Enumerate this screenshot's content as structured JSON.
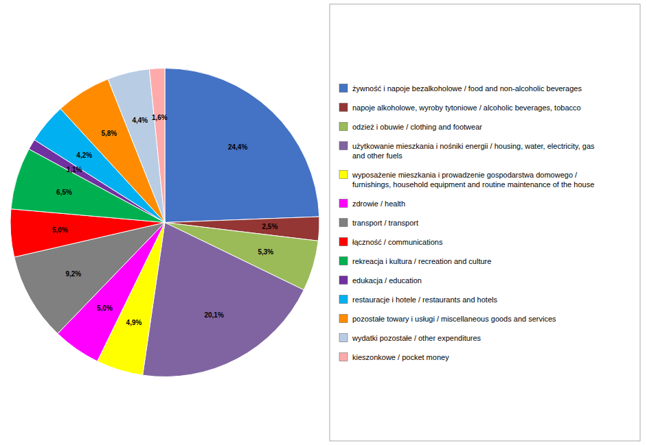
{
  "chart_data": {
    "type": "pie",
    "categories": [
      "żywność i napoje bezalkoholowe / food and non-alcoholic beverages",
      "napoje alkoholowe, wyroby tytoniowe / alcoholic beverages, tobacco",
      "odzież i obuwie / clothing and footwear",
      "użytkowanie mieszkania i nośniki energii / housing, water, electricity, gas\nand other fuels",
      "wyposażenie mieszkania i prowadzenie gospodarstwa domowego /\nfurnishings, household equipment and routine maintenance of the house",
      "zdrowie / health",
      "transport / transport",
      "łączność / communications",
      "rekreacja i kultura / recreation and culture",
      "edukacja / education",
      "restauracje i hotele / restaurants and hotels",
      "pozostałe towary i usługi / miscellaneous goods and services",
      "wydatki pozostałe / other expenditures",
      "kieszonkowe / pocket money"
    ],
    "values": [
      24.4,
      2.5,
      5.3,
      20.1,
      4.9,
      5.0,
      9.2,
      5.0,
      6.5,
      1.1,
      4.2,
      5.8,
      4.4,
      1.6
    ],
    "value_labels": [
      "24,4%",
      "2,5%",
      "5,3%",
      "20,1%",
      "4,9%",
      "5,0%",
      "9,2%",
      "5,0%",
      "6,5%",
      "1,1%",
      "4,2%",
      "5,8%",
      "4,4%",
      "1,6%"
    ],
    "colors": [
      "#4472C4",
      "#943634",
      "#9BBB59",
      "#8064A2",
      "#FFFF00",
      "#FF00FF",
      "#808080",
      "#FF0000",
      "#00B050",
      "#7030A0",
      "#00B0F0",
      "#FF8C00",
      "#B8CCE4",
      "#FFAAAA"
    ],
    "data_labels": true,
    "legend": "right"
  }
}
